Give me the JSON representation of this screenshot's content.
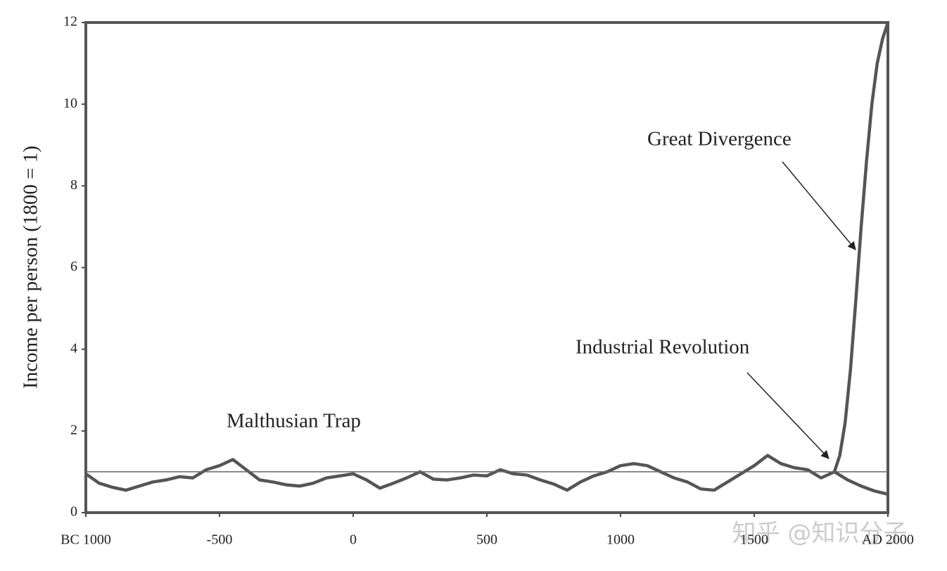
{
  "chart_data": {
    "type": "line",
    "y_label": "Income per person (1800 = 1)",
    "annotations": [
      "Great Divergence",
      "Industrial Revolution",
      "Malthusian Trap"
    ],
    "watermark": "知乎 @知识分子",
    "xlim": [
      -1000,
      2000
    ],
    "xticks": [
      {
        "value": -1000,
        "label": "BC 1000"
      },
      -500,
      0,
      500,
      1000,
      1500,
      {
        "value": 2000,
        "label": "AD 2000"
      }
    ],
    "ylim": [
      0,
      12
    ],
    "yticks": [
      0,
      2,
      4,
      6,
      8,
      10,
      12
    ],
    "series": [
      {
        "color": "#555555",
        "width": 4.5,
        "x": [
          -1000,
          -950,
          -900,
          -850,
          -800,
          -750,
          -700,
          -650,
          -600,
          -550,
          -500,
          -450,
          -400,
          -350,
          -300,
          -250,
          -200,
          -150,
          -100,
          -50,
          0,
          50,
          100,
          150,
          200,
          250,
          300,
          350,
          400,
          450,
          500,
          550,
          600,
          650,
          700,
          750,
          800,
          850,
          900,
          950,
          1000,
          1050,
          1100,
          1150,
          1200,
          1250,
          1300,
          1350,
          1400,
          1450,
          1500,
          1550,
          1600,
          1650,
          1700,
          1750,
          1800,
          1820,
          1840,
          1860,
          1880,
          1900,
          1920,
          1940,
          1960,
          1980,
          2000
        ],
        "values": [
          0.95,
          0.72,
          0.62,
          0.55,
          0.65,
          0.75,
          0.8,
          0.88,
          0.85,
          1.05,
          1.15,
          1.3,
          1.05,
          0.8,
          0.75,
          0.68,
          0.65,
          0.72,
          0.85,
          0.9,
          0.95,
          0.8,
          0.6,
          0.72,
          0.85,
          1.0,
          0.82,
          0.8,
          0.85,
          0.92,
          0.9,
          1.05,
          0.95,
          0.92,
          0.8,
          0.7,
          0.55,
          0.75,
          0.9,
          1.0,
          1.15,
          1.2,
          1.15,
          1.0,
          0.85,
          0.75,
          0.58,
          0.55,
          0.75,
          0.95,
          1.15,
          1.4,
          1.2,
          1.1,
          1.05,
          0.85,
          1.0,
          1.4,
          2.2,
          3.5,
          5.2,
          7.0,
          8.6,
          10.0,
          11.0,
          11.6,
          12
        ]
      },
      {
        "color": "#666666",
        "width": 1.5,
        "x": [
          -1000,
          2000
        ],
        "values": [
          1,
          1
        ]
      },
      {
        "color": "#555555",
        "width": 4.5,
        "x": [
          1800,
          1850,
          1900,
          1950,
          2000
        ],
        "values": [
          1.0,
          0.8,
          0.65,
          0.53,
          0.45
        ]
      }
    ]
  }
}
